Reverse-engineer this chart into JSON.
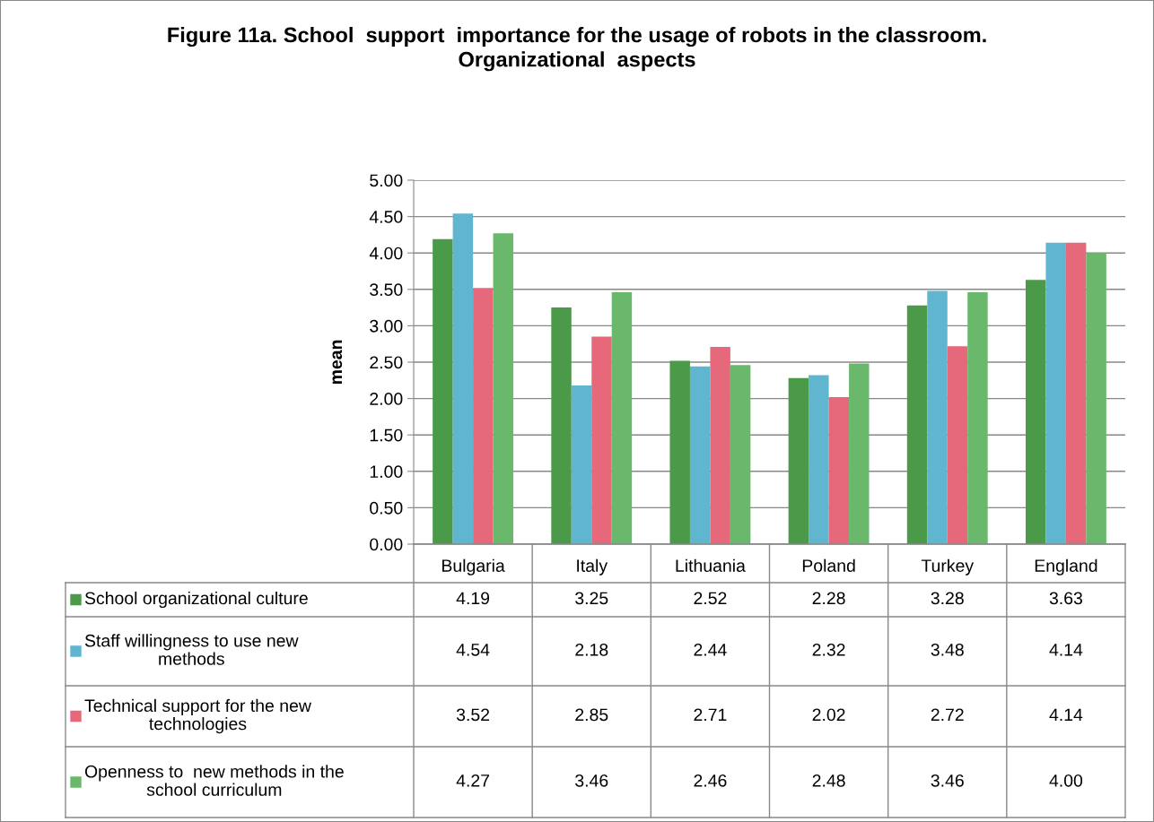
{
  "chart_data": {
    "type": "bar",
    "title": "Figure 11a. School  support  importance for the usage of robots in the classroom. Organizational  aspects",
    "ylabel": "mean",
    "categories": [
      "Bulgaria",
      "Italy",
      "Lithuania",
      "Poland",
      "Turkey",
      "England"
    ],
    "series": [
      {
        "name": "School organizational culture",
        "color": "#4a9a4a",
        "values": [
          4.19,
          3.25,
          2.52,
          2.28,
          3.28,
          3.63
        ],
        "value_labels": [
          "4.19",
          "3.25",
          "2.52",
          "2.28",
          "3.28",
          "3.63"
        ]
      },
      {
        "name": "Staff willingness to use new methods",
        "color": "#60b5cf",
        "values": [
          4.54,
          2.18,
          2.44,
          2.32,
          3.48,
          4.14
        ],
        "value_labels": [
          "4.54",
          "2.18",
          "2.44",
          "2.32",
          "3.48",
          "4.14"
        ]
      },
      {
        "name": "Technical support for the new technologies",
        "color": "#e6697b",
        "values": [
          3.52,
          2.85,
          2.71,
          2.02,
          2.72,
          4.14
        ],
        "value_labels": [
          "3.52",
          "2.85",
          "2.71",
          "2.02",
          "2.72",
          "4.14"
        ]
      },
      {
        "name": "Openness to  new methods in the school curriculum",
        "color": "#6ab86c",
        "values": [
          4.27,
          3.46,
          2.46,
          2.48,
          3.46,
          4.0
        ],
        "value_labels": [
          "4.27",
          "3.46",
          "2.46",
          "2.48",
          "3.46",
          "4.00"
        ]
      }
    ],
    "ylim": [
      0,
      5
    ],
    "yticks": [
      {
        "value": 0,
        "label": "0.00"
      },
      {
        "value": 0.5,
        "label": "0.50"
      },
      {
        "value": 1,
        "label": "1.00"
      },
      {
        "value": 1.5,
        "label": "1.50"
      },
      {
        "value": 2,
        "label": "2.00"
      },
      {
        "value": 2.5,
        "label": "2.50"
      },
      {
        "value": 3,
        "label": "3.00"
      },
      {
        "value": 3.5,
        "label": "3.50"
      },
      {
        "value": 4,
        "label": "4.00"
      },
      {
        "value": 4.5,
        "label": "4.50"
      },
      {
        "value": 5,
        "label": "5.00"
      }
    ],
    "grid": "y",
    "legend": "bottom left"
  }
}
